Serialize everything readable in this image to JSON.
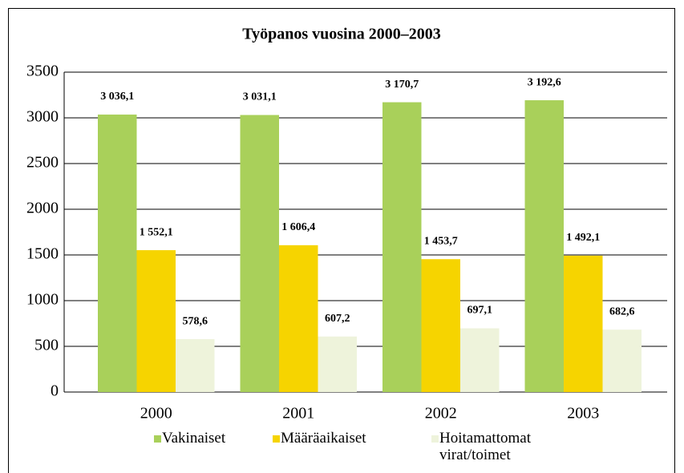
{
  "chart_data": {
    "type": "bar",
    "title": "Työpanos vuosina 2000–2003",
    "categories": [
      "2000",
      "2001",
      "2002",
      "2003"
    ],
    "series": [
      {
        "name": "Vakinaiset",
        "color": "#a9d05a",
        "values": [
          3036.1,
          3031.1,
          3170.7,
          3192.6
        ],
        "value_labels": [
          "3 036,1",
          "3 031,1",
          "3 170,7",
          "3 192,6"
        ]
      },
      {
        "name": "Määräaikaiset",
        "color": "#f6d400",
        "values": [
          1552.1,
          1606.4,
          1453.7,
          1492.1
        ],
        "value_labels": [
          "1 552,1",
          "1 606,4",
          "1 453,7",
          "1 492,1"
        ]
      },
      {
        "name": "Hoitamattomat virat/toimet",
        "color": "#eef3db",
        "values": [
          578.6,
          607.2,
          697.1,
          682.6
        ],
        "value_labels": [
          "578,6",
          "607,2",
          "697,1",
          "682,6"
        ]
      }
    ],
    "ylim": [
      0,
      3500
    ],
    "yticks": [
      0,
      500,
      1000,
      1500,
      2000,
      2500,
      3000,
      3500
    ],
    "grid": true,
    "legend": "bottom"
  }
}
